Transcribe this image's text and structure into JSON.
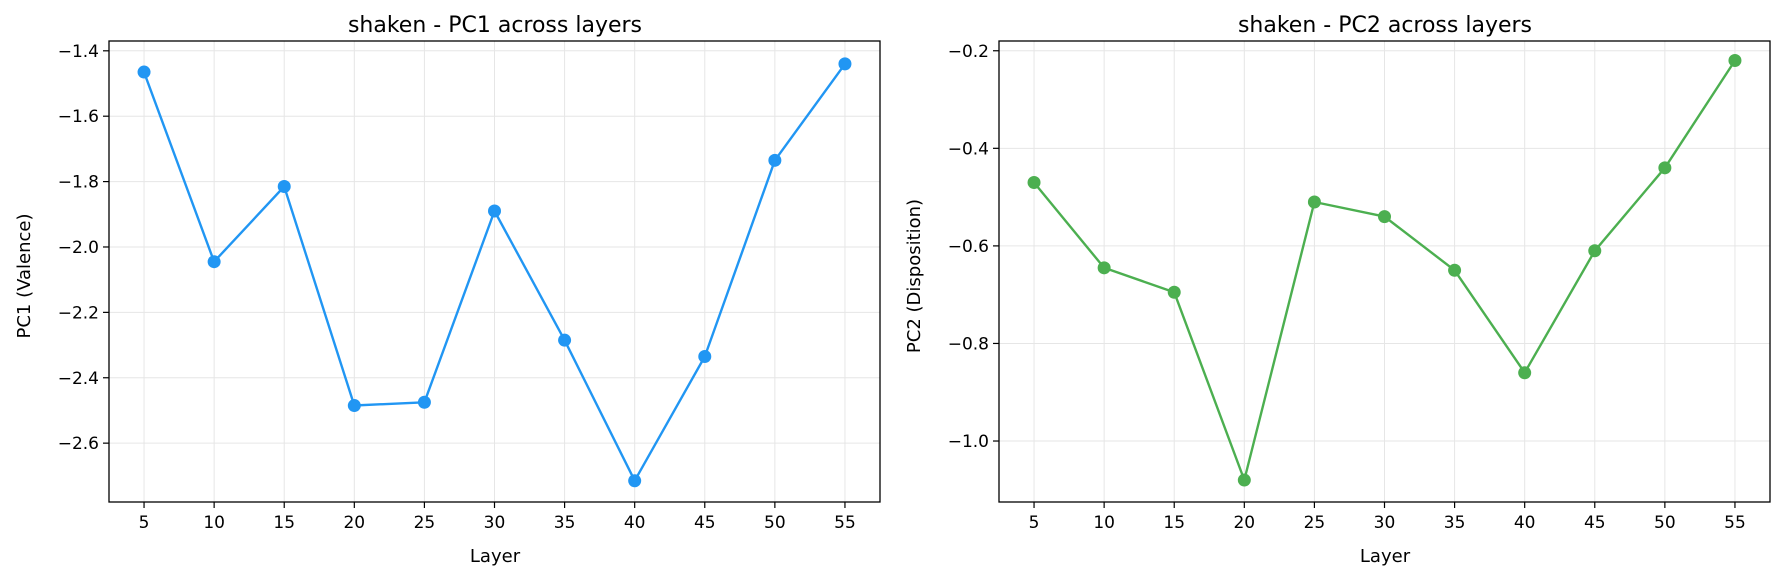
{
  "chart_data": [
    {
      "type": "line",
      "title": "shaken - PC1 across layers",
      "xlabel": "Layer",
      "ylabel": "PC1 (Valence)",
      "x": [
        5,
        10,
        15,
        20,
        25,
        30,
        35,
        40,
        45,
        50,
        55
      ],
      "series": [
        {
          "values": [
            -1.465,
            -2.045,
            -1.815,
            -2.485,
            -2.475,
            -1.89,
            -2.285,
            -2.715,
            -2.335,
            -1.735,
            -1.44
          ],
          "color": "#2196f3"
        }
      ],
      "xticks": [
        5,
        10,
        15,
        20,
        25,
        30,
        35,
        40,
        45,
        50,
        55
      ],
      "yticks": [
        -2.6,
        -2.4,
        -2.2,
        -2.0,
        -1.8,
        -1.6,
        -1.4
      ],
      "ytick_labels": [
        "−2.6",
        "−2.4",
        "−2.2",
        "−2.0",
        "−1.8",
        "−1.6",
        "−1.4"
      ],
      "xlim": [
        2.5,
        57.5
      ],
      "ylim": [
        -2.78,
        -1.37
      ],
      "grid": true
    },
    {
      "type": "line",
      "title": "shaken - PC2 across layers",
      "xlabel": "Layer",
      "ylabel": "PC2 (Disposition)",
      "x": [
        5,
        10,
        15,
        20,
        25,
        30,
        35,
        40,
        45,
        50,
        55
      ],
      "series": [
        {
          "values": [
            -0.47,
            -0.645,
            -0.695,
            -1.08,
            -0.51,
            -0.54,
            -0.65,
            -0.86,
            -0.61,
            -0.44,
            -0.22
          ],
          "color": "#4caf50"
        }
      ],
      "xticks": [
        5,
        10,
        15,
        20,
        25,
        30,
        35,
        40,
        45,
        50,
        55
      ],
      "yticks": [
        -1.0,
        -0.8,
        -0.6,
        -0.4,
        -0.2
      ],
      "ytick_labels": [
        "−1.0",
        "−0.8",
        "−0.6",
        "−0.4",
        "−0.2"
      ],
      "xlim": [
        2.5,
        57.5
      ],
      "ylim": [
        -1.125,
        -0.18
      ],
      "grid": true
    }
  ]
}
